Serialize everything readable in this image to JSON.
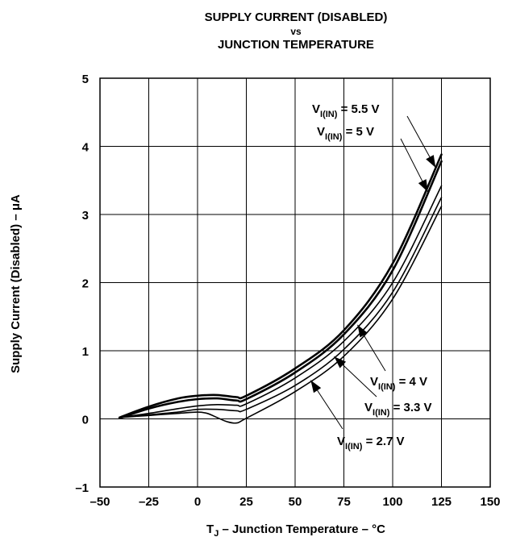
{
  "chart_data": {
    "type": "line",
    "title": {
      "line1": "SUPPLY CURRENT (DISABLED)",
      "line2": "vs",
      "line3": "JUNCTION TEMPERATURE"
    },
    "xlabel": {
      "main": "T",
      "sub": "J",
      "rest": " – Junction Temperature – °C"
    },
    "ylabel": "Supply Current (Disabled) –  μA",
    "xlim": [
      -50,
      150
    ],
    "ylim": [
      -1,
      5
    ],
    "x_ticks": [
      -50,
      -25,
      0,
      25,
      50,
      75,
      100,
      125,
      150
    ],
    "x_tick_labels": [
      "–50",
      "–25",
      "0",
      "25",
      "50",
      "75",
      "100",
      "125",
      "150"
    ],
    "y_ticks": [
      -1,
      0,
      1,
      2,
      3,
      4,
      5
    ],
    "y_tick_labels": [
      "–1",
      "0",
      "1",
      "2",
      "3",
      "4",
      "5"
    ],
    "grid": true,
    "series": [
      {
        "name": "VI(IN) = 5.5 V",
        "stroke": 2.6,
        "x": [
          -40,
          -25,
          -10,
          0,
          10,
          20,
          25,
          50,
          75,
          100,
          125
        ],
        "y": [
          0.02,
          0.18,
          0.3,
          0.34,
          0.35,
          0.32,
          0.34,
          0.74,
          1.3,
          2.28,
          3.88
        ]
      },
      {
        "name": "VI(IN) = 5 V",
        "stroke": 2.6,
        "x": [
          -40,
          -25,
          -10,
          0,
          10,
          20,
          25,
          50,
          75,
          100,
          125
        ],
        "y": [
          0.01,
          0.15,
          0.25,
          0.29,
          0.3,
          0.27,
          0.29,
          0.68,
          1.24,
          2.18,
          3.78
        ]
      },
      {
        "name": "VI(IN) = 4 V",
        "stroke": 1.6,
        "x": [
          -40,
          -25,
          -10,
          0,
          10,
          20,
          25,
          50,
          75,
          100,
          125
        ],
        "y": [
          0.02,
          0.08,
          0.15,
          0.19,
          0.21,
          0.2,
          0.22,
          0.6,
          1.14,
          2.0,
          3.42
        ]
      },
      {
        "name": "VI(IN) = 3.3 V",
        "stroke": 1.6,
        "x": [
          -40,
          -25,
          -10,
          0,
          10,
          20,
          25,
          50,
          75,
          100,
          125
        ],
        "y": [
          0.02,
          0.06,
          0.1,
          0.14,
          0.14,
          0.12,
          0.14,
          0.49,
          1.02,
          1.86,
          3.25
        ]
      },
      {
        "name": "VI(IN) = 2.7 V",
        "stroke": 1.6,
        "x": [
          -40,
          -25,
          -10,
          0,
          5,
          10,
          15,
          20,
          25,
          50,
          75,
          100,
          125
        ],
        "y": [
          0.02,
          0.05,
          0.08,
          0.1,
          0.08,
          0.02,
          -0.04,
          -0.06,
          0.01,
          0.4,
          0.92,
          1.76,
          3.12
        ]
      }
    ],
    "annotations": [
      {
        "main": "V",
        "sub": "I(IN)",
        "rest": " = 5.5 V",
        "series": 0
      },
      {
        "main": "V",
        "sub": "I(IN)",
        "rest": " = 5 V",
        "series": 1
      },
      {
        "main": "V",
        "sub": "I(IN)",
        "rest": " = 4 V",
        "series": 2
      },
      {
        "main": "V",
        "sub": "I(IN)",
        "rest": " = 3.3 V",
        "series": 3
      },
      {
        "main": "V",
        "sub": "I(IN)",
        "rest": " = 2.7 V",
        "series": 4
      }
    ]
  }
}
